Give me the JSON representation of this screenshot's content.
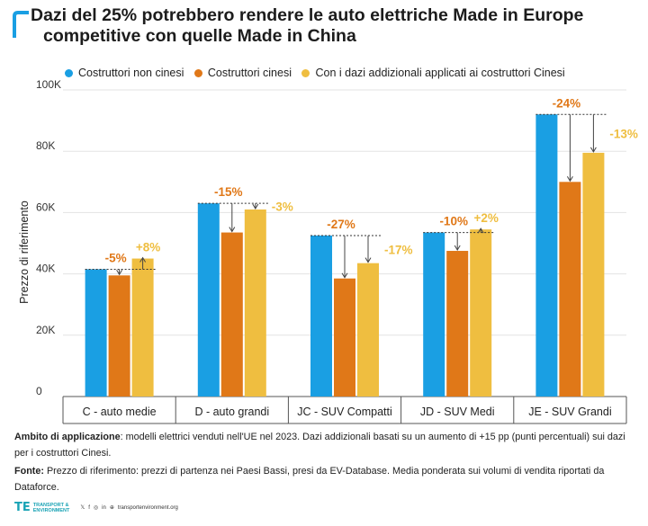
{
  "title_line1": "Dazi del 25% potrebbero rendere le auto elettriche Made in Europe",
  "title_line2": "competitive con quelle Made in China",
  "colors": {
    "blue": "#1a9fe3",
    "orange": "#e07818",
    "yellow": "#efbe40",
    "accent": "#1a9fe3"
  },
  "chart_data": {
    "type": "bar",
    "ylabel": "Prezzo di riferimento",
    "ylim": [
      0,
      100000
    ],
    "yticks": [
      0,
      20000,
      40000,
      60000,
      80000,
      100000
    ],
    "ytick_labels": [
      "0",
      "20K",
      "40K",
      "60K",
      "80K",
      "100K"
    ],
    "grid": true,
    "legend_position": "top",
    "categories": [
      "C - auto medie",
      "D - auto grandi",
      "JC - SUV Compatti",
      "JD - SUV Medi",
      "JE - SUV Grandi"
    ],
    "series": [
      {
        "name": "Costruttori non cinesi",
        "color": "#1a9fe3",
        "values": [
          41500,
          63000,
          52500,
          53500,
          92000
        ]
      },
      {
        "name": "Costruttori cinesi",
        "color": "#e07818",
        "values": [
          39500,
          53500,
          38500,
          47500,
          70000
        ]
      },
      {
        "name": "Con i dazi addizionali applicati ai costruttori Cinesi",
        "color": "#efbe40",
        "values": [
          45000,
          61000,
          43500,
          54500,
          79500
        ]
      }
    ],
    "annotations": {
      "cinesi_diff": [
        "-5%",
        "-15%",
        "-27%",
        "-10%",
        "-24%"
      ],
      "dazi_diff": [
        "+8%",
        "-3%",
        "-17%",
        "+2%",
        "-13%"
      ]
    }
  },
  "notes": {
    "ambito_label": "Ambito di applicazione",
    "ambito_text": ": modelli elettrici venduti nell'UE nel 2023. Dazi addizionali basati su un aumento di +15 pp (punti percentuali) sui dazi per i costruttori Cinesi.",
    "fonte_label": "Fonte:",
    "fonte_text": " Prezzo di riferimento: prezzi di partenza nei Paesi Bassi, presi da EV-Database. Media ponderata sui volumi di vendita riportati da Dataforce."
  },
  "footer": {
    "logo_mark": "TE",
    "logo_line1": "TRANSPORT &",
    "logo_line2": "ENVIRONMENT",
    "website": "transportenvironment.org",
    "social_icons": [
      "twitter-icon",
      "facebook-icon",
      "instagram-icon",
      "linkedin-icon",
      "globe-icon"
    ]
  }
}
